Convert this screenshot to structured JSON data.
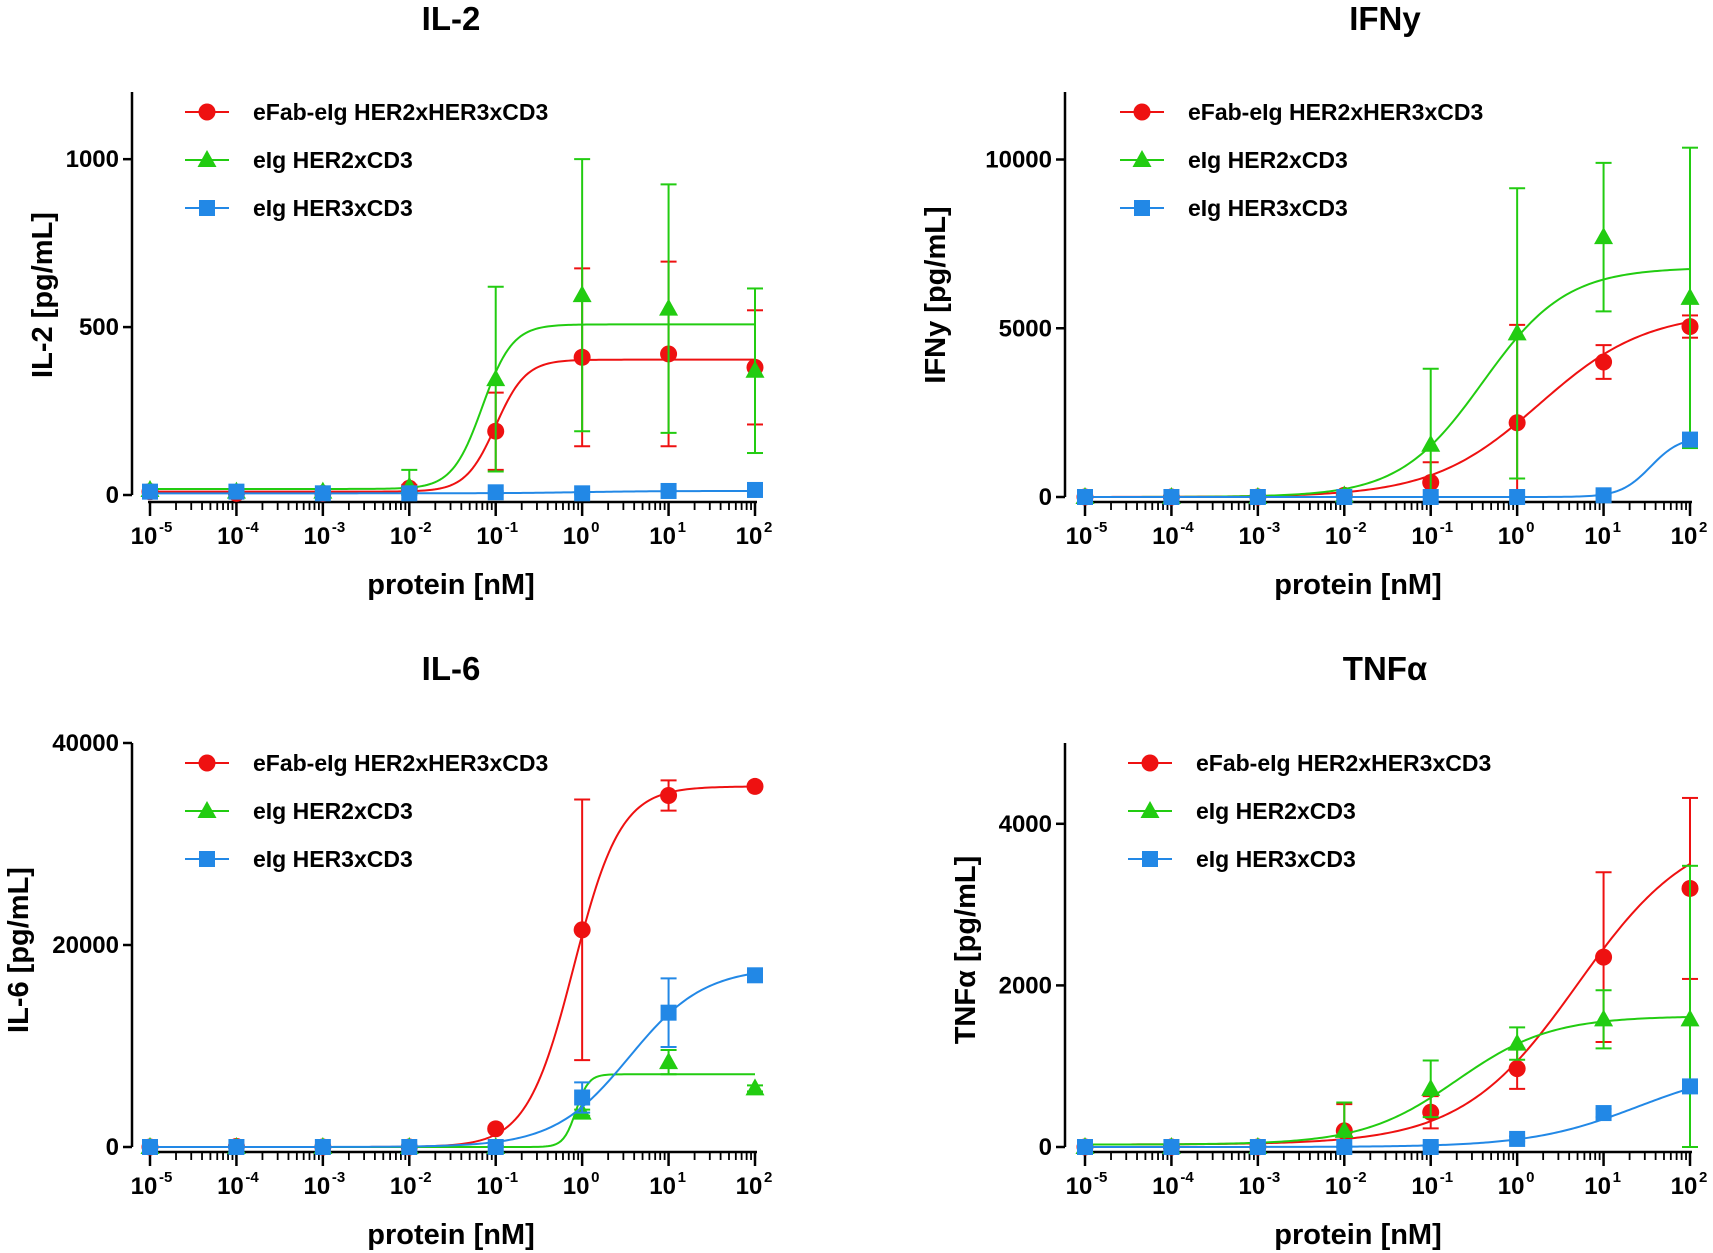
{
  "colors": {
    "red": "#ee1111",
    "green": "#22cc11",
    "blue": "#2288e6",
    "axis": "#000000"
  },
  "legend": [
    "eFab-eIg HER2xHER3xCD3",
    "eIg HER2xCD3",
    "eIg HER3xCD3"
  ],
  "chart_data": [
    {
      "type": "scatter",
      "title": "IL-2",
      "ylabel": "IL-2  [pg/mL]",
      "xlabel": "protein [nM]",
      "xscale": "log",
      "xlim": [
        -5,
        2
      ],
      "ylim": [
        0,
        1200
      ],
      "yticks": [
        0,
        500,
        1000
      ],
      "ytick_labels": [
        "0",
        "500",
        "1000"
      ],
      "legend_position": "top-left",
      "series": [
        {
          "name": "eFab-eIg HER2xHER3xCD3",
          "color": "red",
          "marker": "circle",
          "x": [
            1e-05,
            0.0001,
            0.001,
            0.01,
            0.1,
            1,
            10,
            100
          ],
          "y": [
            10,
            5,
            5,
            20,
            190,
            410,
            420,
            380
          ],
          "err": [
            5,
            3,
            3,
            10,
            115,
            265,
            275,
            170
          ],
          "fit": {
            "bottom": 10,
            "top": 403,
            "ec50": 0.1,
            "hill": 2.5
          }
        },
        {
          "name": "eIg HER2xCD3",
          "color": "green",
          "marker": "triangle",
          "x": [
            1e-05,
            0.0001,
            0.001,
            0.01,
            0.1,
            1,
            10,
            100
          ],
          "y": [
            15,
            10,
            10,
            25,
            345,
            595,
            555,
            370
          ],
          "err": [
            5,
            5,
            5,
            50,
            275,
            405,
            370,
            245
          ],
          "fit": {
            "bottom": 18,
            "top": 508,
            "ec50": 0.07,
            "hill": 2.5
          }
        },
        {
          "name": "eIg HER3xCD3",
          "color": "blue",
          "marker": "square",
          "x": [
            1e-05,
            0.0001,
            0.001,
            0.01,
            0.1,
            1,
            10,
            100
          ],
          "y": [
            10,
            10,
            5,
            5,
            8,
            5,
            12,
            15
          ],
          "err": [
            3,
            3,
            3,
            3,
            3,
            3,
            3,
            3
          ],
          "fit": {
            "bottom": 5,
            "top": 12,
            "ec50": 1,
            "hill": 1
          }
        }
      ]
    },
    {
      "type": "scatter",
      "title": "IFNy",
      "ylabel": "IFNy  [pg/mL]",
      "xlabel": "protein [nM]",
      "xscale": "log",
      "xlim": [
        -5,
        2
      ],
      "ylim": [
        0,
        12000
      ],
      "yticks": [
        0,
        5000,
        10000
      ],
      "ytick_labels": [
        "0",
        "5000",
        "10000"
      ],
      "legend_position": "top-left",
      "series": [
        {
          "name": "eFab-eIg HER2xHER3xCD3",
          "color": "red",
          "marker": "circle",
          "x": [
            1e-05,
            0.0001,
            0.001,
            0.01,
            0.1,
            1,
            10,
            100
          ],
          "y": [
            0,
            0,
            0,
            50,
            430,
            2200,
            4000,
            5050
          ],
          "err": [
            20,
            20,
            20,
            30,
            600,
            2900,
            500,
            330
          ],
          "fit": {
            "bottom": 0,
            "top": 5500,
            "ec50": 1.8,
            "hill": 0.7
          }
        },
        {
          "name": "eIg HER2xCD3",
          "color": "green",
          "marker": "triangle",
          "x": [
            1e-05,
            0.0001,
            0.001,
            0.01,
            0.1,
            1,
            10,
            100
          ],
          "y": [
            0,
            0,
            0,
            50,
            1550,
            4850,
            7700,
            5900
          ],
          "err": [
            20,
            20,
            20,
            30,
            2250,
            4300,
            2200,
            4450
          ],
          "fit": {
            "bottom": 0,
            "top": 6800,
            "ec50": 0.4,
            "hill": 0.9
          }
        },
        {
          "name": "eIg HER3xCD3",
          "color": "blue",
          "marker": "square",
          "x": [
            1e-05,
            0.0001,
            0.001,
            0.01,
            0.1,
            1,
            10,
            100
          ],
          "y": [
            0,
            0,
            0,
            0,
            0,
            0,
            50,
            1700
          ],
          "err": [
            10,
            10,
            10,
            10,
            10,
            10,
            30,
            200
          ],
          "fit": {
            "bottom": 0,
            "top": 1800,
            "ec50": 35,
            "hill": 2.5
          }
        }
      ]
    },
    {
      "type": "scatter",
      "title": "IL-6",
      "ylabel": "IL-6 [pg/mL]",
      "xlabel": "protein [nM]",
      "xscale": "log",
      "xlim": [
        -5,
        2
      ],
      "ylim": [
        0,
        40000
      ],
      "yticks": [
        0,
        20000,
        40000
      ],
      "ytick_labels": [
        "0",
        "20000",
        "40000"
      ],
      "legend_position": "top-left",
      "series": [
        {
          "name": "eFab-eIg HER2xHER3xCD3",
          "color": "red",
          "marker": "circle",
          "x": [
            1e-05,
            0.0001,
            0.001,
            0.01,
            0.1,
            1,
            10,
            100
          ],
          "y": [
            0,
            50,
            0,
            0,
            1800,
            21500,
            34800,
            35700
          ],
          "err": [
            100,
            100,
            100,
            100,
            200,
            12900,
            1500,
            200
          ],
          "fit": {
            "bottom": 0,
            "top": 35700,
            "ec50": 0.8,
            "hill": 1.6
          }
        },
        {
          "name": "eIg HER2xCD3",
          "color": "green",
          "marker": "triangle",
          "x": [
            1e-05,
            0.0001,
            0.001,
            0.01,
            0.1,
            1,
            10,
            100
          ],
          "y": [
            0,
            0,
            0,
            0,
            0,
            3400,
            8400,
            5800
          ],
          "err": [
            100,
            100,
            100,
            100,
            100,
            300,
            1200,
            300
          ],
          "fit": {
            "bottom": 0,
            "top": 7200,
            "ec50": 0.85,
            "hill": 6
          }
        },
        {
          "name": "eIg HER3xCD3",
          "color": "blue",
          "marker": "square",
          "x": [
            1e-05,
            0.0001,
            0.001,
            0.01,
            0.1,
            1,
            10,
            100
          ],
          "y": [
            0,
            0,
            0,
            0,
            0,
            4900,
            13300,
            17000
          ],
          "err": [
            100,
            100,
            100,
            100,
            100,
            1500,
            3400,
            300
          ],
          "fit": {
            "bottom": 0,
            "top": 17800,
            "ec50": 3.5,
            "hill": 1
          }
        }
      ]
    },
    {
      "type": "scatter",
      "title": "TNFα",
      "ylabel": "TNFα [pg/mL]",
      "xlabel": "protein [nM]",
      "xscale": "log",
      "xlim": [
        -5,
        2
      ],
      "ylim": [
        0,
        5000
      ],
      "yticks": [
        0,
        2000,
        4000
      ],
      "ytick_labels": [
        "0",
        "2000",
        "4000"
      ],
      "legend_position": "top-left",
      "series": [
        {
          "name": "eFab-eIg HER2xHER3xCD3",
          "color": "red",
          "marker": "circle",
          "x": [
            1e-05,
            0.0001,
            0.001,
            0.01,
            0.1,
            1,
            10,
            100
          ],
          "y": [
            0,
            0,
            0,
            200,
            430,
            970,
            2350,
            3200
          ],
          "err": [
            20,
            20,
            20,
            330,
            200,
            250,
            1050,
            1120
          ],
          "fit": {
            "bottom": 30,
            "top": 4000,
            "ec50": 5,
            "hill": 0.65
          }
        },
        {
          "name": "eIg HER2xCD3",
          "color": "green",
          "marker": "triangle",
          "x": [
            1e-05,
            0.0001,
            0.001,
            0.01,
            0.1,
            1,
            10,
            100
          ],
          "y": [
            0,
            0,
            0,
            200,
            720,
            1280,
            1580,
            1580
          ],
          "err": [
            20,
            20,
            20,
            350,
            350,
            200,
            360,
            1900
          ],
          "fit": {
            "bottom": 30,
            "top": 1620,
            "ec50": 0.2,
            "hill": 0.8
          }
        },
        {
          "name": "eIg HER3xCD3",
          "color": "blue",
          "marker": "square",
          "x": [
            1e-05,
            0.0001,
            0.001,
            0.01,
            0.1,
            1,
            10,
            100
          ],
          "y": [
            0,
            0,
            0,
            0,
            0,
            100,
            420,
            750
          ],
          "err": [
            10,
            10,
            10,
            10,
            10,
            30,
            50,
            50
          ],
          "fit": {
            "bottom": 0,
            "top": 1000,
            "ec50": 25,
            "hill": 0.7
          }
        }
      ]
    }
  ]
}
